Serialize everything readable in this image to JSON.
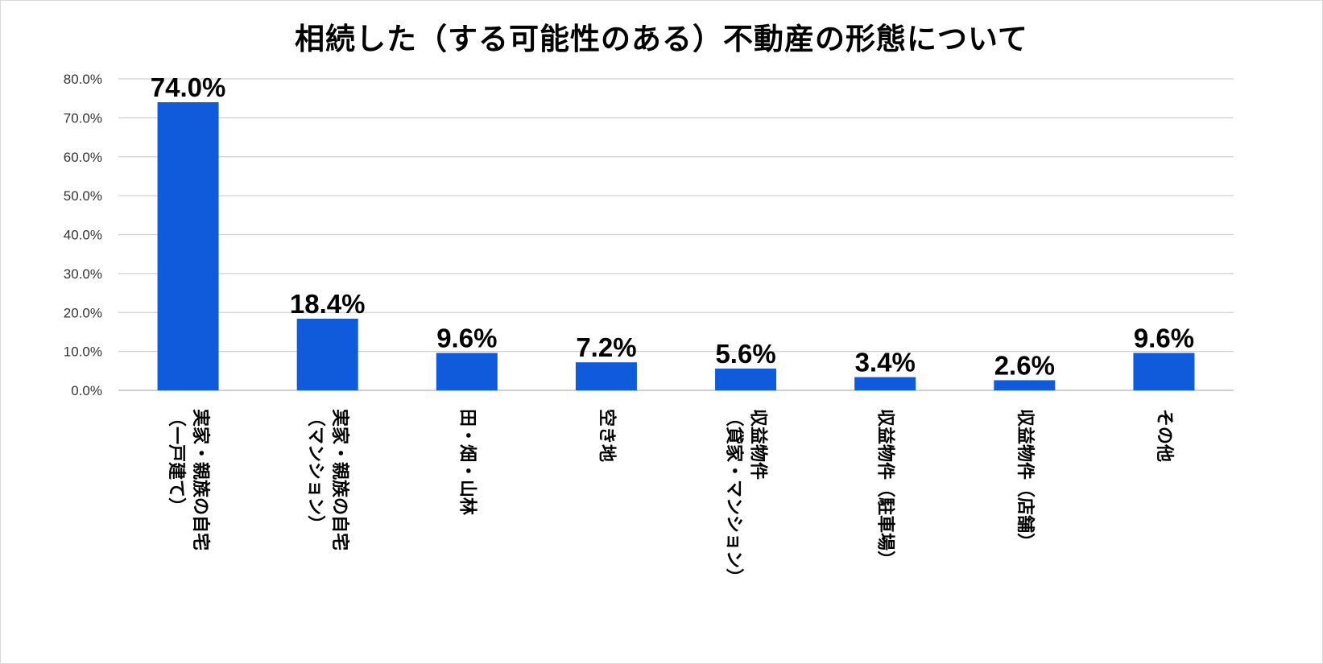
{
  "chart_data": {
    "type": "bar",
    "title": "相続した（する可能性のある）不動産の形態について",
    "categories": [
      "実家・親族の自宅（一戸建て）",
      "実家・親族の自宅（マンション）",
      "田・畑・山林",
      "空き地",
      "収益物件（貸家・マンション）",
      "収益物件（駐車場）",
      "収益物件（店舗）",
      "その他"
    ],
    "category_lines": [
      [
        "実家・親族の自宅",
        "（一戸建て）"
      ],
      [
        "実家・親族の自宅",
        "（マンション）"
      ],
      [
        "田・畑・山林"
      ],
      [
        "空き地"
      ],
      [
        "収益物件",
        "（貸家・マンション）"
      ],
      [
        "収益物件（駐車場）"
      ],
      [
        "収益物件（店舗）"
      ],
      [
        "その他"
      ]
    ],
    "values": [
      74.0,
      18.4,
      9.6,
      7.2,
      5.6,
      3.4,
      2.6,
      9.6
    ],
    "data_labels": [
      "74.0%",
      "18.4%",
      "9.6%",
      "7.2%",
      "5.6%",
      "3.4%",
      "2.6%",
      "9.6%"
    ],
    "ylim": [
      0,
      80
    ],
    "yticks": [
      0,
      10,
      20,
      30,
      40,
      50,
      60,
      70,
      80
    ],
    "ytick_labels": [
      "0.0%",
      "10.0%",
      "20.0%",
      "30.0%",
      "40.0%",
      "50.0%",
      "60.0%",
      "70.0%",
      "80.0%"
    ],
    "xlabel": "",
    "ylabel": "",
    "grid": true,
    "legend": "none",
    "bar_color": "#0f5bdc"
  }
}
